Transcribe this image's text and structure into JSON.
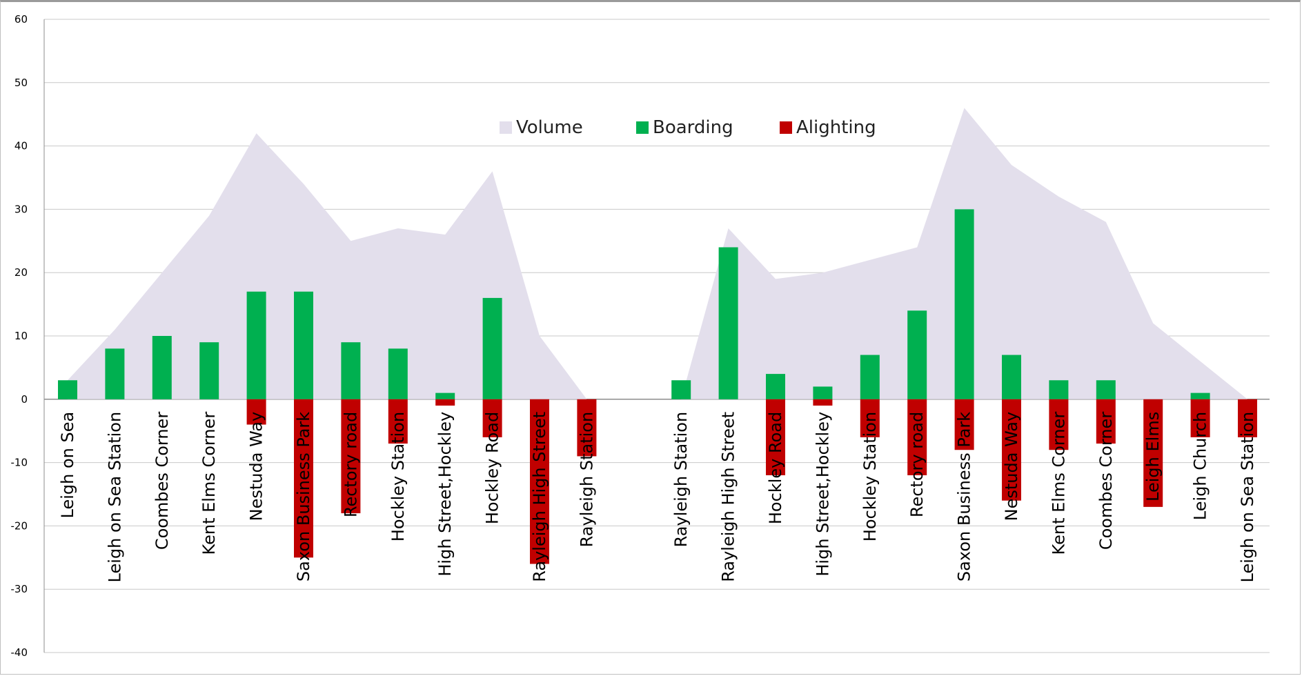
{
  "chart_data": {
    "type": "bar",
    "title": "",
    "xlabel": "",
    "ylabel": "",
    "ylim": [
      -40,
      60
    ],
    "yticks": [
      60,
      50,
      40,
      30,
      20,
      10,
      0,
      -10,
      -20,
      -30,
      -40
    ],
    "grid": true,
    "legend_position": "top-center",
    "categories": [
      "Leigh on Sea",
      "Leigh on Sea Station",
      "Coombes Corner",
      "Kent  Elms Corner",
      "Nestuda Way",
      "Saxon Business Park",
      "Rectory road",
      "Hockley Station",
      "High Street,Hockley",
      "Hockley Road",
      "Rayleigh High Street",
      "Rayleigh Station",
      "",
      "Rayleigh Station",
      "Rayleigh High Street",
      "Hockley Road",
      "High Street,Hockley",
      "Hockley Station",
      "Rectory road",
      "Saxon Business  Park",
      "Nestuda Way",
      "Kent  Elms Corner",
      "Coombes Corner",
      "Leigh Elms",
      "Leigh Church",
      "Leigh on Sea Station"
    ],
    "series": [
      {
        "name": "Volume",
        "kind": "area",
        "color": "#e3dfec",
        "values": [
          3,
          11,
          20,
          29,
          42,
          34,
          25,
          27,
          26,
          36,
          10,
          0,
          null,
          0,
          27,
          19,
          20,
          22,
          24,
          46,
          37,
          32,
          28,
          12,
          6,
          0
        ]
      },
      {
        "name": "Boarding",
        "kind": "bar",
        "color": "#00b050",
        "values": [
          3,
          8,
          10,
          9,
          17,
          17,
          9,
          8,
          1,
          16,
          0,
          0,
          null,
          3,
          24,
          4,
          2,
          7,
          14,
          30,
          7,
          3,
          3,
          0,
          1,
          0
        ]
      },
      {
        "name": "Alighting",
        "kind": "bar",
        "color": "#c00000",
        "values": [
          0,
          0,
          0,
          0,
          -4,
          -25,
          -18,
          -7,
          -1,
          -6,
          -26,
          -9,
          null,
          0,
          0,
          -12,
          -1,
          -6,
          -12,
          -8,
          -16,
          -8,
          -7,
          -17,
          -6,
          -6
        ]
      }
    ]
  }
}
